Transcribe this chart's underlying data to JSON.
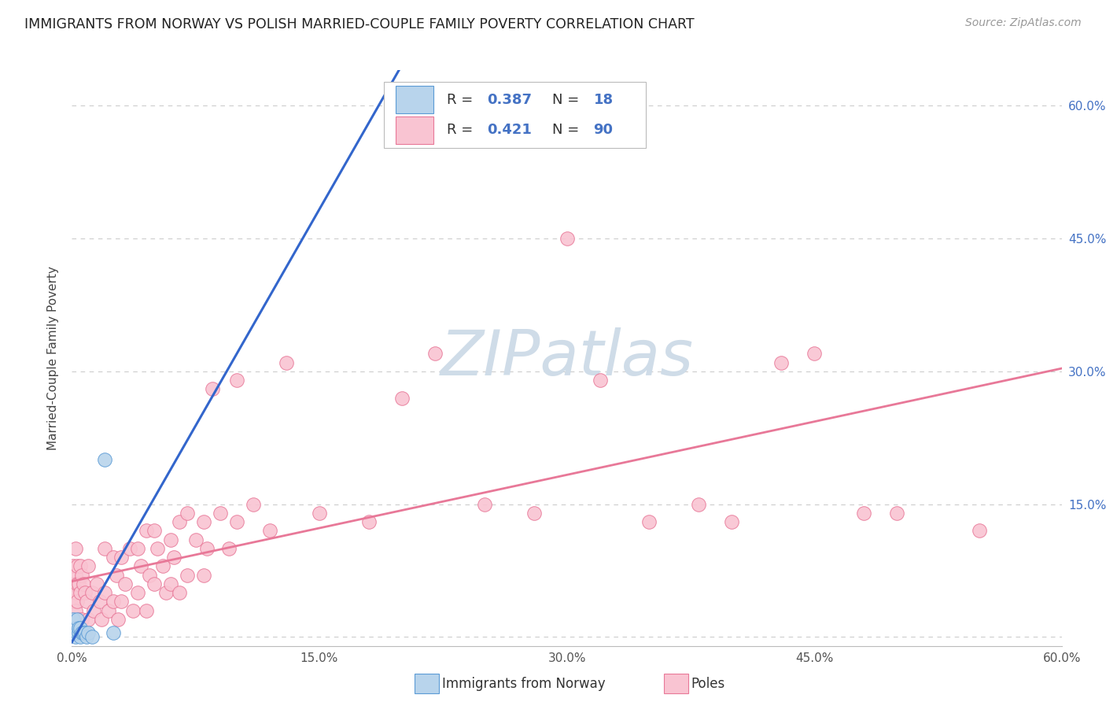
{
  "title": "IMMIGRANTS FROM NORWAY VS POLISH MARRIED-COUPLE FAMILY POVERTY CORRELATION CHART",
  "source": "Source: ZipAtlas.com",
  "ylabel": "Married-Couple Family Poverty",
  "xlim": [
    0.0,
    0.6
  ],
  "ylim": [
    -0.01,
    0.64
  ],
  "yticks": [
    0.0,
    0.15,
    0.3,
    0.45,
    0.6
  ],
  "ytick_labels": [
    "",
    "15.0%",
    "30.0%",
    "45.0%",
    "60.0%"
  ],
  "xticks": [
    0.0,
    0.15,
    0.3,
    0.45,
    0.6
  ],
  "xtick_labels": [
    "0.0%",
    "15.0%",
    "30.0%",
    "45.0%",
    "60.0%"
  ],
  "norway_R": 0.387,
  "norway_N": 18,
  "poles_R": 0.421,
  "poles_N": 90,
  "norway_scatter_color": "#b8d4ec",
  "norway_edge_color": "#5b9bd5",
  "norway_line_color": "#3366cc",
  "norway_dash_color": "#8ab0d8",
  "poles_scatter_color": "#f9c4d2",
  "poles_edge_color": "#e87898",
  "poles_line_color": "#e87898",
  "tick_color": "#4472c4",
  "grid_color": "#cccccc",
  "watermark_color": "#cfdce8",
  "norway_x": [
    0.001,
    0.001,
    0.002,
    0.002,
    0.003,
    0.003,
    0.004,
    0.004,
    0.005,
    0.005,
    0.006,
    0.007,
    0.008,
    0.009,
    0.01,
    0.012,
    0.02,
    0.025
  ],
  "norway_y": [
    0.005,
    0.02,
    0.0,
    0.01,
    0.005,
    0.02,
    0.005,
    0.01,
    0.0,
    0.01,
    0.005,
    0.005,
    0.005,
    0.0,
    0.005,
    0.0,
    0.2,
    0.005
  ],
  "poles_x": [
    0.001,
    0.001,
    0.001,
    0.001,
    0.001,
    0.002,
    0.002,
    0.002,
    0.002,
    0.002,
    0.003,
    0.003,
    0.003,
    0.003,
    0.004,
    0.004,
    0.005,
    0.005,
    0.005,
    0.006,
    0.006,
    0.007,
    0.007,
    0.008,
    0.009,
    0.01,
    0.01,
    0.012,
    0.013,
    0.015,
    0.017,
    0.018,
    0.02,
    0.02,
    0.022,
    0.025,
    0.025,
    0.027,
    0.028,
    0.03,
    0.03,
    0.032,
    0.035,
    0.037,
    0.04,
    0.04,
    0.042,
    0.045,
    0.045,
    0.047,
    0.05,
    0.05,
    0.052,
    0.055,
    0.057,
    0.06,
    0.06,
    0.062,
    0.065,
    0.065,
    0.07,
    0.07,
    0.075,
    0.08,
    0.08,
    0.082,
    0.085,
    0.09,
    0.095,
    0.1,
    0.1,
    0.11,
    0.12,
    0.13,
    0.15,
    0.18,
    0.2,
    0.22,
    0.25,
    0.28,
    0.3,
    0.32,
    0.35,
    0.38,
    0.4,
    0.43,
    0.45,
    0.48,
    0.5,
    0.55
  ],
  "poles_y": [
    0.08,
    0.06,
    0.04,
    0.02,
    0.005,
    0.1,
    0.07,
    0.05,
    0.03,
    0.005,
    0.08,
    0.06,
    0.04,
    0.005,
    0.06,
    0.02,
    0.08,
    0.05,
    0.005,
    0.07,
    0.02,
    0.06,
    0.005,
    0.05,
    0.04,
    0.08,
    0.02,
    0.05,
    0.03,
    0.06,
    0.04,
    0.02,
    0.1,
    0.05,
    0.03,
    0.09,
    0.04,
    0.07,
    0.02,
    0.09,
    0.04,
    0.06,
    0.1,
    0.03,
    0.1,
    0.05,
    0.08,
    0.12,
    0.03,
    0.07,
    0.12,
    0.06,
    0.1,
    0.08,
    0.05,
    0.11,
    0.06,
    0.09,
    0.13,
    0.05,
    0.14,
    0.07,
    0.11,
    0.13,
    0.07,
    0.1,
    0.28,
    0.14,
    0.1,
    0.13,
    0.29,
    0.15,
    0.12,
    0.31,
    0.14,
    0.13,
    0.27,
    0.32,
    0.15,
    0.14,
    0.45,
    0.29,
    0.13,
    0.15,
    0.13,
    0.31,
    0.32,
    0.14,
    0.14,
    0.12
  ]
}
